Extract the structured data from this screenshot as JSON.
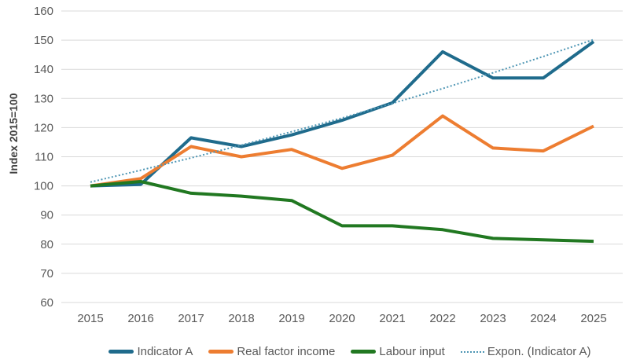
{
  "chart_data": {
    "type": "line",
    "title": "",
    "xlabel": "",
    "ylabel": "Index 2015=100",
    "ylim": [
      60,
      160
    ],
    "ytick_step": 10,
    "grid": "horizontal",
    "legend_position": "bottom",
    "x": [
      2015,
      2016,
      2017,
      2018,
      2019,
      2020,
      2021,
      2022,
      2023,
      2024,
      2025
    ],
    "series": [
      {
        "name": "Indicator A",
        "color": "#1F6B8C",
        "style": "solid",
        "values": [
          100,
          100.5,
          116.5,
          113.5,
          117.5,
          122.5,
          128.5,
          146,
          137,
          137,
          149.5
        ]
      },
      {
        "name": "Real factor income",
        "color": "#ED7D31",
        "style": "solid",
        "values": [
          100,
          102.5,
          113.5,
          110,
          112.5,
          106,
          110.5,
          124,
          113,
          112,
          120.5
        ]
      },
      {
        "name": "Labour input",
        "color": "#217821",
        "style": "solid",
        "values": [
          100,
          101.5,
          97.5,
          96.5,
          95,
          86.3,
          86.3,
          85,
          82,
          81.5,
          81
        ]
      },
      {
        "name": "Expon. (Indicator A)",
        "color": "#4E96B4",
        "style": "dotted",
        "values": [
          101.3,
          105.4,
          109.6,
          114.0,
          118.6,
          123.3,
          128.3,
          133.4,
          138.8,
          144.4,
          150.2
        ]
      }
    ],
    "colors": {
      "gridline": "#D9D9D9",
      "tick_text": "#595959",
      "axis_title_text": "#3f3f3f"
    }
  }
}
